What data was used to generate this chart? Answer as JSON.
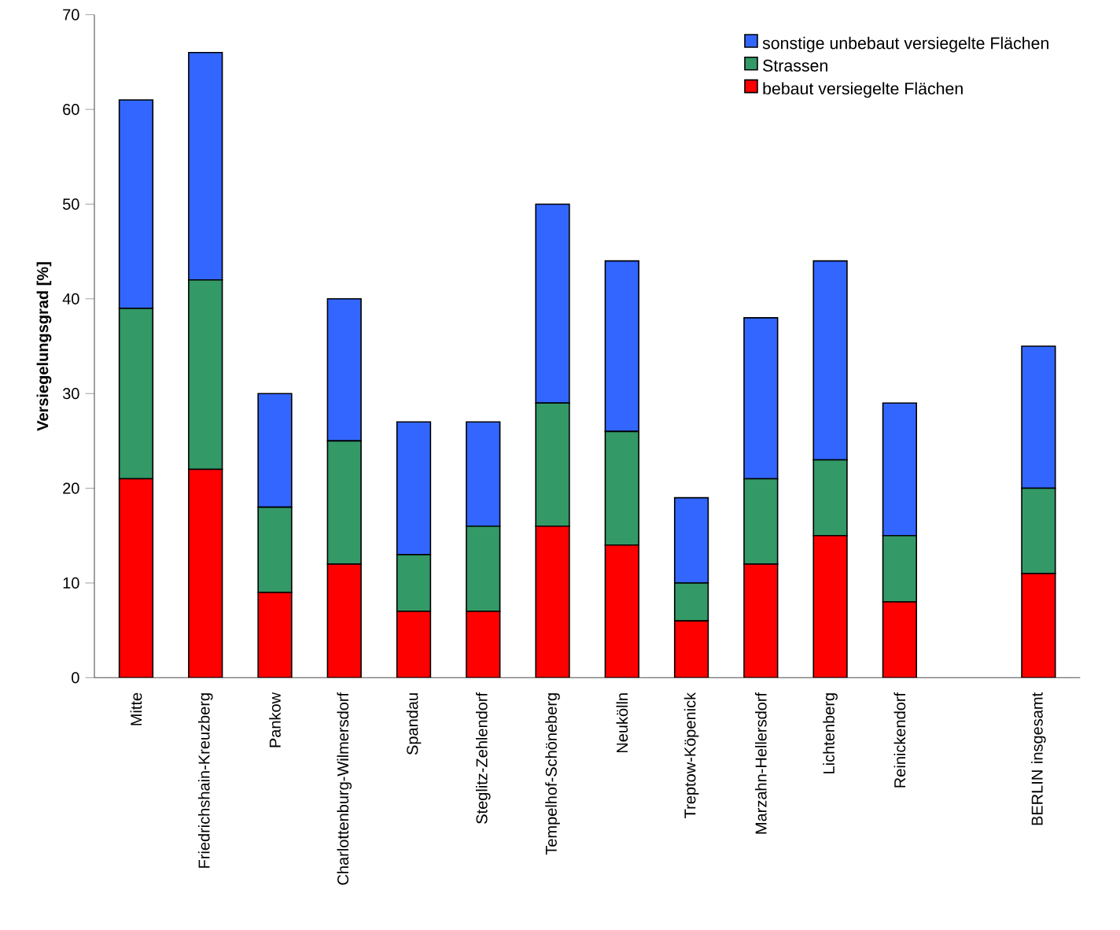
{
  "chart_data": {
    "type": "bar",
    "stacked": true,
    "ylabel": "Versiegelungsgrad [%]",
    "categories": [
      "Mitte",
      "Friedrichshain-Kreuzberg",
      "Pankow",
      "Charlottenburg-Wilmersdorf",
      "Spandau",
      "Steglitz-Zehlendorf",
      "Tempelhof-Schöneberg",
      "Neukölln",
      "Treptow-Köpenick",
      "Marzahn-Hellersdorf",
      "Lichtenberg",
      "Reinickendorf",
      null,
      "BERLIN insgesamt"
    ],
    "series": [
      {
        "name": "bebaut versiegelte Flächen",
        "color": "#ff0000",
        "values": [
          21,
          22,
          9,
          12,
          7,
          7,
          16,
          14,
          6,
          12,
          15,
          8,
          null,
          11
        ]
      },
      {
        "name": "Strassen",
        "color": "#339966",
        "values": [
          18,
          20,
          9,
          13,
          6,
          9,
          13,
          12,
          4,
          9,
          8,
          7,
          null,
          9
        ]
      },
      {
        "name": "sonstige unbebaut versiegelte Flächen",
        "color": "#3366ff",
        "values": [
          22,
          24,
          12,
          15,
          14,
          11,
          21,
          18,
          9,
          17,
          21,
          14,
          null,
          15
        ]
      }
    ],
    "ylim": [
      0,
      70
    ],
    "yticks": [
      0,
      10,
      20,
      30,
      40,
      50,
      60,
      70
    ],
    "grid": false,
    "legend": "top right"
  }
}
